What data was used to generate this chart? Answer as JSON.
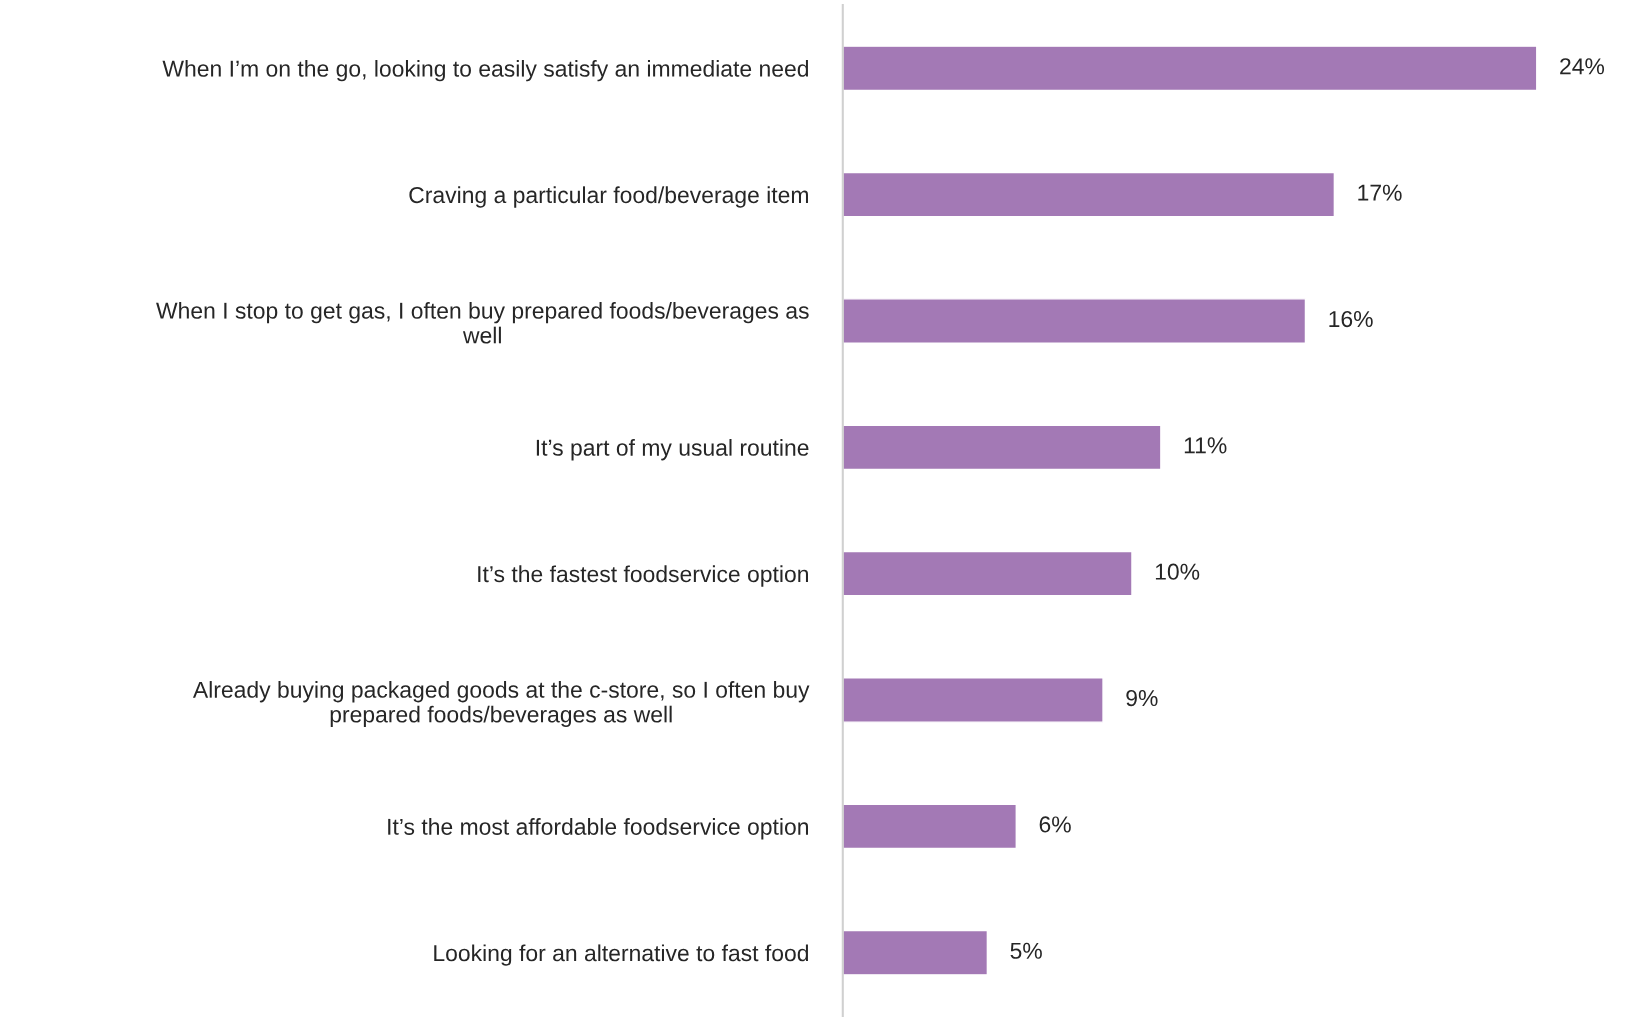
{
  "chart_data": {
    "type": "bar",
    "orientation": "horizontal",
    "categories": [
      "When I’m on the go, looking to easily satisfy an immediate need",
      "Craving a particular food/beverage item",
      "When I stop to get gas, I often buy prepared foods/beverages as\nwell",
      "It’s part of my usual routine",
      "It’s the fastest foodservice option",
      "Already buying packaged goods at the c-store, so I often buy\nprepared foods/beverages as well",
      "It’s the most affordable foodservice option",
      "Looking for an alternative to fast food"
    ],
    "values": [
      24,
      17,
      16,
      11,
      10,
      9,
      6,
      5
    ],
    "value_labels": [
      "24%",
      "17%",
      "16%",
      "11%",
      "10%",
      "9%",
      "6%",
      "5%"
    ],
    "color": "#a379b5",
    "grid": false,
    "legend": false
  }
}
